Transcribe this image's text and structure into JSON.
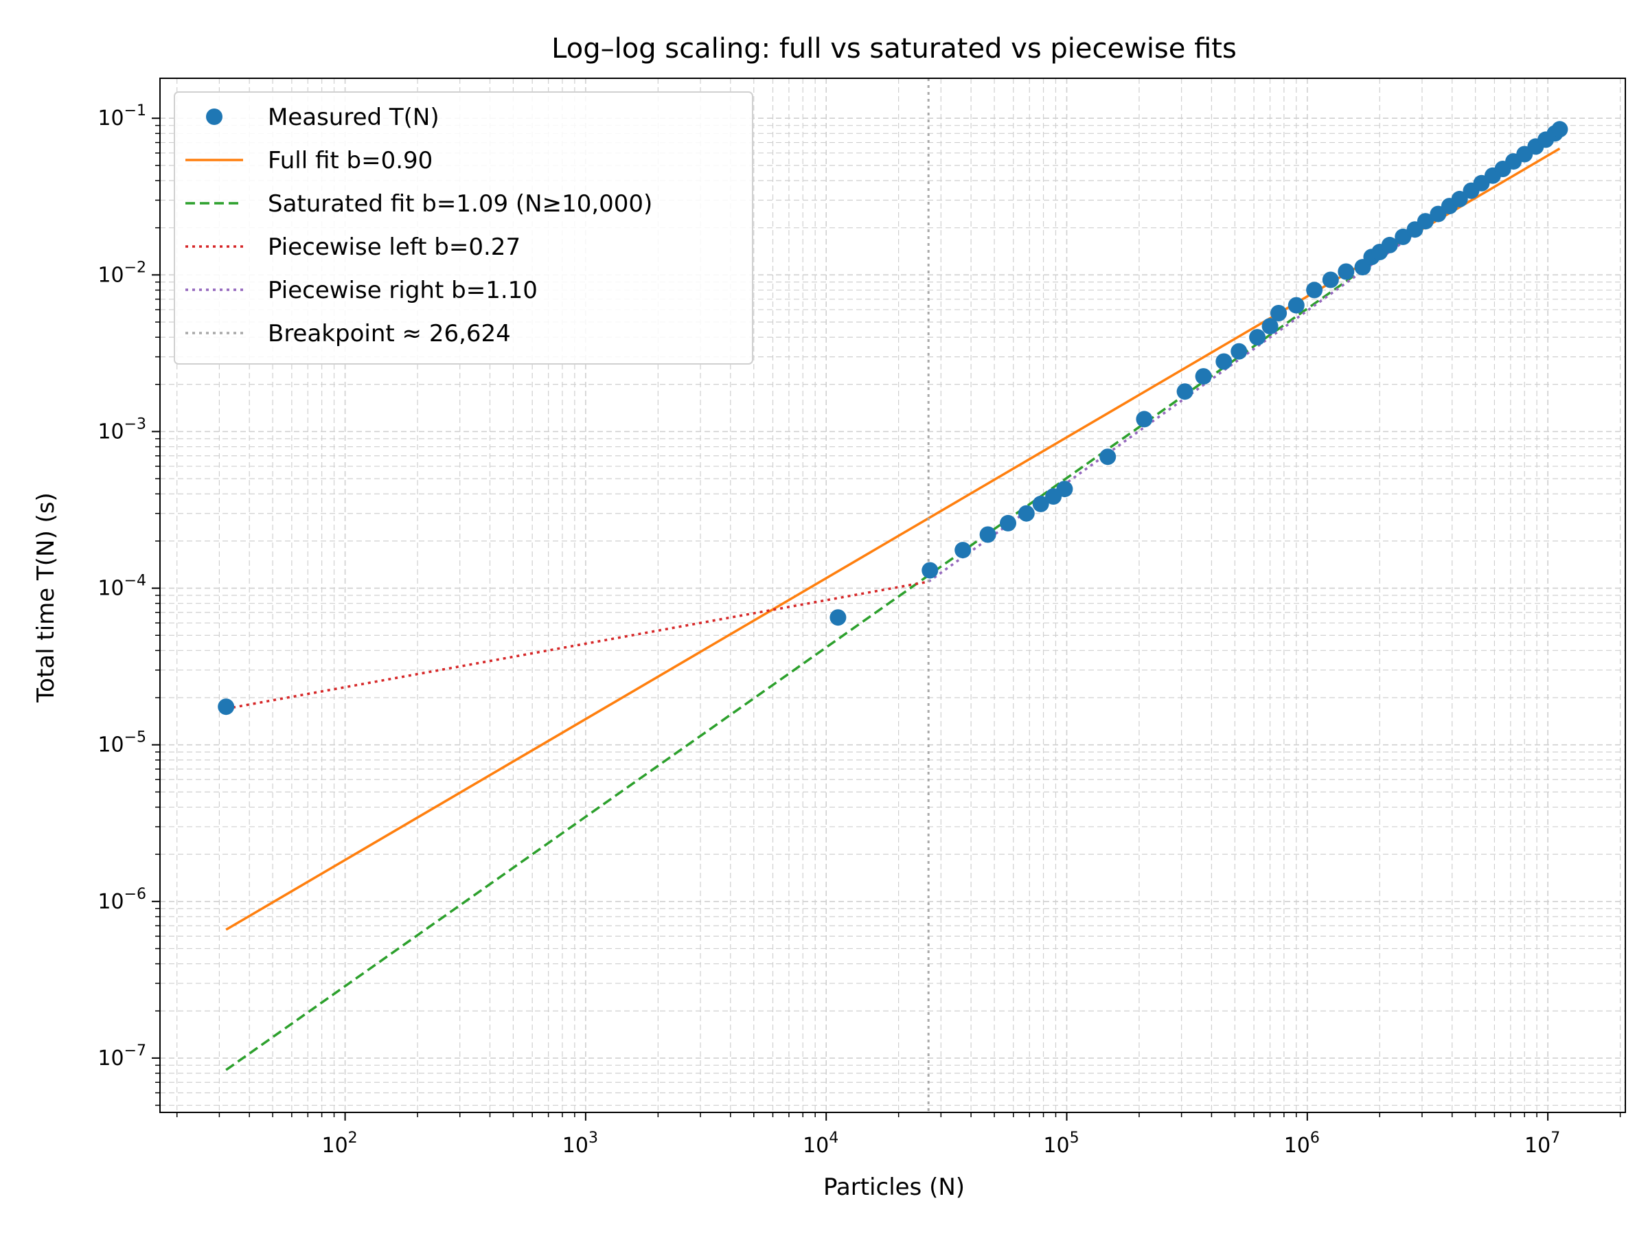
{
  "chart_data": {
    "type": "scatter",
    "title": "Log–log scaling: full vs saturated vs piecewise fits",
    "xlabel": "Particles (N)",
    "ylabel": "Total time T(N) (s)",
    "xscale": "log",
    "yscale": "log",
    "xlim": [
      17,
      21000000
    ],
    "ylim": [
      4.5e-08,
      0.18
    ],
    "grid": "major and minor, dashed",
    "legend_position": "upper-left",
    "xticks": [
      {
        "value": 100,
        "base": "10",
        "exp": "2"
      },
      {
        "value": 1000,
        "base": "10",
        "exp": "3"
      },
      {
        "value": 10000,
        "base": "10",
        "exp": "4"
      },
      {
        "value": 100000,
        "base": "10",
        "exp": "5"
      },
      {
        "value": 1000000,
        "base": "10",
        "exp": "6"
      },
      {
        "value": 10000000,
        "base": "10",
        "exp": "7"
      }
    ],
    "yticks": [
      {
        "value": 1e-07,
        "base": "10",
        "exp": "−7"
      },
      {
        "value": 1e-06,
        "base": "10",
        "exp": "−6"
      },
      {
        "value": 1e-05,
        "base": "10",
        "exp": "−5"
      },
      {
        "value": 0.0001,
        "base": "10",
        "exp": "−4"
      },
      {
        "value": 0.001,
        "base": "10",
        "exp": "−3"
      },
      {
        "value": 0.01,
        "base": "10",
        "exp": "−2"
      },
      {
        "value": 0.1,
        "base": "10",
        "exp": "−1"
      }
    ],
    "series": [
      {
        "name": "Measured T(N)",
        "kind": "markers",
        "color": "#1f77b4",
        "points": [
          [
            32,
            1.75e-05
          ],
          [
            11200,
            6.5e-05
          ],
          [
            27000,
            0.00013
          ],
          [
            37000,
            0.000175
          ],
          [
            47000,
            0.00022
          ],
          [
            57000,
            0.00026
          ],
          [
            68000,
            0.0003
          ],
          [
            78000,
            0.000345
          ],
          [
            88000,
            0.000385
          ],
          [
            98000,
            0.00043
          ],
          [
            148000,
            0.00069
          ],
          [
            210000,
            0.0012
          ],
          [
            310000,
            0.0018
          ],
          [
            370000,
            0.00225
          ],
          [
            450000,
            0.0028
          ],
          [
            520000,
            0.00325
          ],
          [
            620000,
            0.004
          ],
          [
            700000,
            0.0047
          ],
          [
            760000,
            0.0057
          ],
          [
            900000,
            0.0064
          ],
          [
            1070000,
            0.008
          ],
          [
            1250000,
            0.0093
          ],
          [
            1450000,
            0.0105
          ],
          [
            1700000,
            0.0112
          ],
          [
            1850000,
            0.013
          ],
          [
            2000000,
            0.014
          ],
          [
            2200000,
            0.0155
          ],
          [
            2500000,
            0.0175
          ],
          [
            2800000,
            0.0195
          ],
          [
            3100000,
            0.022
          ],
          [
            3500000,
            0.0245
          ],
          [
            3900000,
            0.0275
          ],
          [
            4300000,
            0.0305
          ],
          [
            4800000,
            0.0345
          ],
          [
            5300000,
            0.0385
          ],
          [
            5900000,
            0.043
          ],
          [
            6500000,
            0.0475
          ],
          [
            7200000,
            0.053
          ],
          [
            8000000,
            0.059
          ],
          [
            8900000,
            0.066
          ],
          [
            9800000,
            0.073
          ],
          [
            10700000,
            0.08
          ],
          [
            11200000,
            0.085
          ]
        ]
      },
      {
        "name": "Full fit b=0.90",
        "kind": "line",
        "color": "#ff7f0e",
        "dash": "",
        "points": [
          [
            32,
            6.6e-07
          ],
          [
            11200000,
            0.064
          ]
        ]
      },
      {
        "name": "Saturated fit b=1.09 (N≥10,000)",
        "kind": "line",
        "color": "#2ca02c",
        "dash": "14,7",
        "points": [
          [
            32,
            8.4e-08
          ],
          [
            11200000,
            0.083
          ]
        ]
      },
      {
        "name": "Piecewise left b=0.27",
        "kind": "line",
        "color": "#d62728",
        "dash": "4,6",
        "points": [
          [
            32,
            1.7e-05
          ],
          [
            26624,
            0.00011
          ]
        ]
      },
      {
        "name": "Piecewise right b=1.10",
        "kind": "line",
        "color": "#9467bd",
        "dash": "4,6",
        "points": [
          [
            26624,
            0.00011
          ],
          [
            11200000,
            0.084
          ]
        ]
      },
      {
        "name": "Breakpoint ≈ 26,624",
        "kind": "vline",
        "color": "#a8a8a8",
        "dash": "4,6",
        "x": 26624
      }
    ]
  }
}
